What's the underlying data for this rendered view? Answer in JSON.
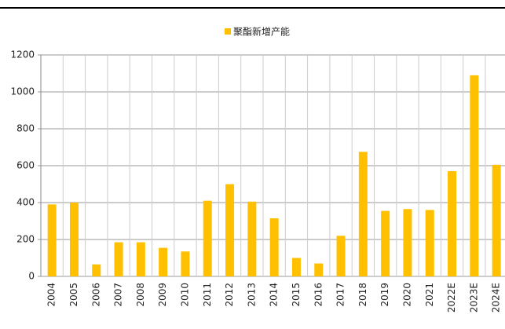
{
  "chart_data": {
    "type": "bar",
    "categories": [
      "2004",
      "2005",
      "2006",
      "2007",
      "2008",
      "2009",
      "2010",
      "2011",
      "2012",
      "2013",
      "2014",
      "2015",
      "2016",
      "2017",
      "2018",
      "2019",
      "2020",
      "2021",
      "2022E",
      "2023E",
      "2024E"
    ],
    "series": [
      {
        "name": "聚酯新增产能",
        "color": "#FFC000",
        "values": [
          390,
          400,
          65,
          185,
          185,
          155,
          135,
          410,
          500,
          405,
          315,
          100,
          70,
          220,
          675,
          355,
          365,
          360,
          570,
          1090,
          605
        ]
      }
    ],
    "ylim": [
      0,
      1200
    ],
    "yticks": [
      0,
      200,
      400,
      600,
      800,
      1000,
      1200
    ],
    "grid": true,
    "legend": "top"
  }
}
